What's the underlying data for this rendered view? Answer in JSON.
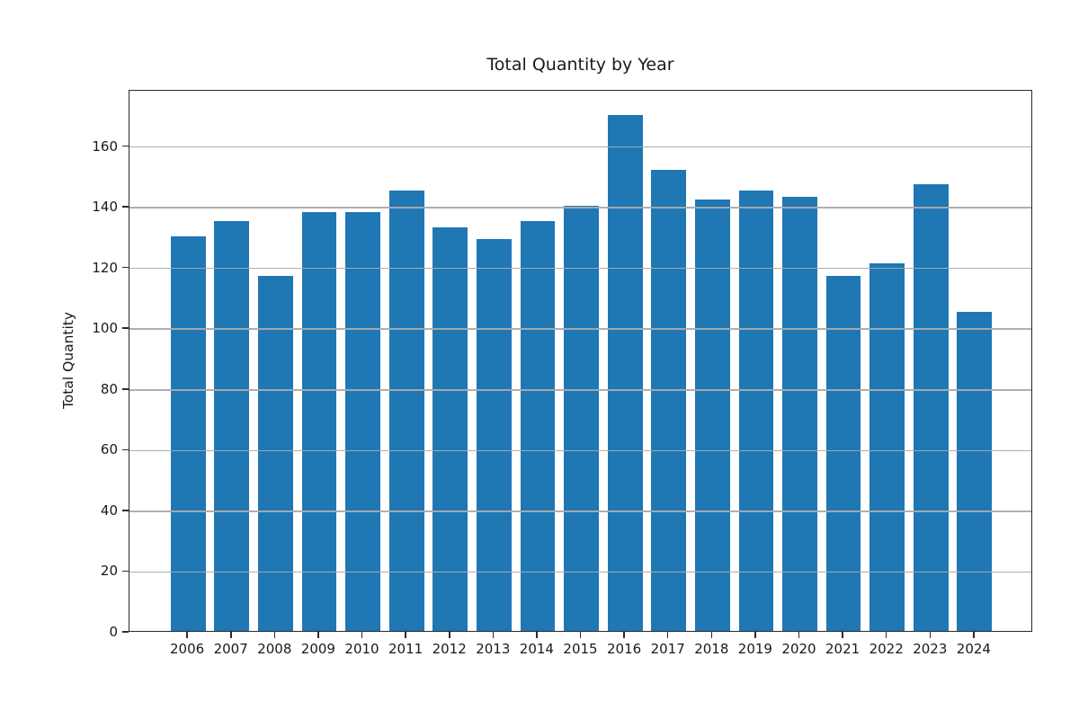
{
  "chart_data": {
    "type": "bar",
    "title": "Total Quantity by Year",
    "xlabel": "",
    "ylabel": "Total Quantity",
    "categories": [
      "2006",
      "2007",
      "2008",
      "2009",
      "2010",
      "2011",
      "2012",
      "2013",
      "2014",
      "2015",
      "2016",
      "2017",
      "2018",
      "2019",
      "2020",
      "2021",
      "2022",
      "2023",
      "2024"
    ],
    "values": [
      130,
      135,
      117,
      138,
      138,
      145,
      133,
      129,
      135,
      140,
      170,
      152,
      142,
      145,
      143,
      117,
      121,
      147,
      105
    ],
    "yticks": [
      0,
      20,
      40,
      60,
      80,
      100,
      120,
      140,
      160
    ],
    "ylim": [
      0,
      178.5
    ],
    "grid": "horizontal, drawn above bars",
    "legend_position": "none",
    "bar_color": "#1f77b4",
    "grid_color": "#ababab",
    "axis_color": "#2b2b2b",
    "text_color": "#1a1a1a",
    "background_color": "#ffffff"
  }
}
